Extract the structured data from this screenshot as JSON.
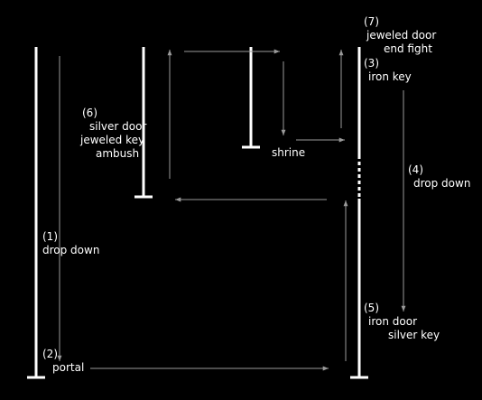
{
  "colors": {
    "background": "#000000",
    "wall": "#ffffff",
    "arrow": "#9a9a9a",
    "text": "#ffffff"
  },
  "steps": [
    {
      "num": "(1)",
      "lines": [
        "drop down"
      ]
    },
    {
      "num": "(2)",
      "lines": [
        "portal"
      ]
    },
    {
      "num": "(3)",
      "lines": [
        "iron key"
      ]
    },
    {
      "num": "(4)",
      "lines": [
        "drop down"
      ]
    },
    {
      "num": "(5)",
      "lines": [
        "iron door",
        "silver key"
      ]
    },
    {
      "num": "(6)",
      "lines": [
        "silver door",
        "jeweled key",
        "ambush"
      ]
    },
    {
      "num": "(7)",
      "lines": [
        "jeweled door",
        "end fight"
      ]
    }
  ],
  "places": {
    "shrine": "shrine"
  }
}
